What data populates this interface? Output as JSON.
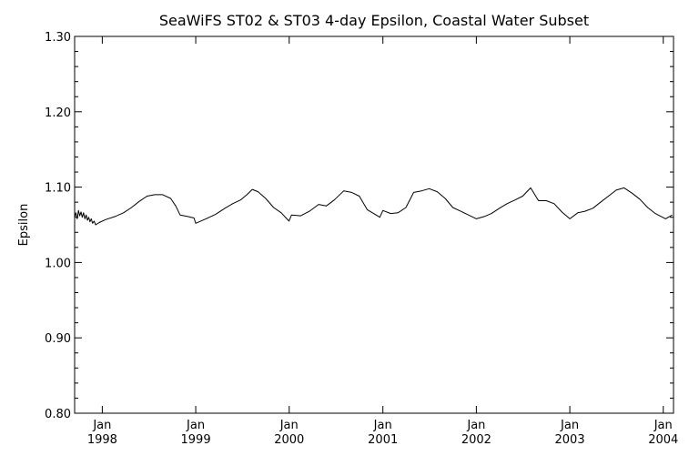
{
  "chart_data": {
    "type": "line",
    "title": "SeaWiFS ST02 & ST03 4-day Epsilon, Coastal Water Subset",
    "xlabel": "",
    "ylabel": "Epsilon",
    "xlim": [
      "1997-09-15",
      "2004-02-10"
    ],
    "ylim": [
      0.8,
      1.3
    ],
    "y_ticks": [
      {
        "value": 0.8,
        "label": "0.80"
      },
      {
        "value": 0.9,
        "label": "0.90"
      },
      {
        "value": 1.0,
        "label": "1.00"
      },
      {
        "value": 1.1,
        "label": "1.10"
      },
      {
        "value": 1.2,
        "label": "1.20"
      },
      {
        "value": 1.3,
        "label": "1.30"
      }
    ],
    "x_ticks": [
      {
        "value": "1998-01-01",
        "month": "Jan",
        "year": "1998"
      },
      {
        "value": "1999-01-01",
        "month": "Jan",
        "year": "1999"
      },
      {
        "value": "2000-01-01",
        "month": "Jan",
        "year": "2000"
      },
      {
        "value": "2001-01-01",
        "month": "Jan",
        "year": "2001"
      },
      {
        "value": "2002-01-01",
        "month": "Jan",
        "year": "2002"
      },
      {
        "value": "2003-01-01",
        "month": "Jan",
        "year": "2003"
      },
      {
        "value": "2004-01-01",
        "month": "Jan",
        "year": "2004"
      }
    ],
    "grid": false,
    "legend": "none",
    "series": [
      {
        "color": "#000000",
        "points": [
          [
            "1997-09-15",
            1.06
          ],
          [
            "1997-09-20",
            1.066
          ],
          [
            "1997-09-25",
            1.058
          ],
          [
            "1997-09-30",
            1.069
          ],
          [
            "1997-10-05",
            1.062
          ],
          [
            "1997-10-10",
            1.067
          ],
          [
            "1997-10-15",
            1.06
          ],
          [
            "1997-10-20",
            1.066
          ],
          [
            "1997-10-25",
            1.058
          ],
          [
            "1997-10-30",
            1.063
          ],
          [
            "1997-11-04",
            1.056
          ],
          [
            "1997-11-09",
            1.06
          ],
          [
            "1997-11-14",
            1.054
          ],
          [
            "1997-11-19",
            1.058
          ],
          [
            "1997-11-24",
            1.052
          ],
          [
            "1997-11-30",
            1.055
          ],
          [
            "1997-12-06",
            1.05
          ],
          [
            "1997-12-20",
            1.053
          ],
          [
            "1998-01-15",
            1.057
          ],
          [
            "1998-02-20",
            1.061
          ],
          [
            "1998-03-25",
            1.066
          ],
          [
            "1998-04-25",
            1.073
          ],
          [
            "1998-05-25",
            1.081
          ],
          [
            "1998-06-25",
            1.088
          ],
          [
            "1998-07-25",
            1.09
          ],
          [
            "1998-08-25",
            1.09
          ],
          [
            "1998-09-25",
            1.085
          ],
          [
            "1998-10-15",
            1.075
          ],
          [
            "1998-11-01",
            1.063
          ],
          [
            "1998-12-01",
            1.061
          ],
          [
            "1998-12-25",
            1.059
          ],
          [
            "1999-01-01",
            1.052
          ],
          [
            "1999-02-10",
            1.058
          ],
          [
            "1999-03-20",
            1.064
          ],
          [
            "1999-04-25",
            1.072
          ],
          [
            "1999-05-25",
            1.078
          ],
          [
            "1999-06-25",
            1.083
          ],
          [
            "1999-07-20",
            1.09
          ],
          [
            "1999-08-10",
            1.097
          ],
          [
            "1999-09-01",
            1.094
          ],
          [
            "1999-10-01",
            1.085
          ],
          [
            "1999-11-01",
            1.073
          ],
          [
            "1999-12-01",
            1.066
          ],
          [
            "1999-12-31",
            1.055
          ],
          [
            "2000-01-10",
            1.063
          ],
          [
            "2000-02-15",
            1.062
          ],
          [
            "2000-03-20",
            1.068
          ],
          [
            "2000-04-25",
            1.077
          ],
          [
            "2000-05-25",
            1.075
          ],
          [
            "2000-06-25",
            1.083
          ],
          [
            "2000-08-01",
            1.095
          ],
          [
            "2000-09-01",
            1.093
          ],
          [
            "2000-10-01",
            1.088
          ],
          [
            "2000-11-01",
            1.07
          ],
          [
            "2000-12-01",
            1.064
          ],
          [
            "2000-12-20",
            1.06
          ],
          [
            "2001-01-01",
            1.069
          ],
          [
            "2001-02-01",
            1.065
          ],
          [
            "2001-03-01",
            1.066
          ],
          [
            "2001-04-01",
            1.073
          ],
          [
            "2001-05-01",
            1.093
          ],
          [
            "2001-06-01",
            1.095
          ],
          [
            "2001-07-01",
            1.098
          ],
          [
            "2001-08-01",
            1.094
          ],
          [
            "2001-09-01",
            1.085
          ],
          [
            "2001-10-01",
            1.073
          ],
          [
            "2001-11-01",
            1.068
          ],
          [
            "2001-12-01",
            1.063
          ],
          [
            "2002-01-01",
            1.058
          ],
          [
            "2002-02-01",
            1.061
          ],
          [
            "2002-03-01",
            1.065
          ],
          [
            "2002-04-01",
            1.072
          ],
          [
            "2002-05-01",
            1.078
          ],
          [
            "2002-06-01",
            1.083
          ],
          [
            "2002-07-01",
            1.088
          ],
          [
            "2002-08-01",
            1.099
          ],
          [
            "2002-09-01",
            1.082
          ],
          [
            "2002-10-01",
            1.082
          ],
          [
            "2002-11-01",
            1.078
          ],
          [
            "2002-12-01",
            1.067
          ],
          [
            "2003-01-01",
            1.058
          ],
          [
            "2003-02-01",
            1.066
          ],
          [
            "2003-03-01",
            1.068
          ],
          [
            "2003-04-01",
            1.072
          ],
          [
            "2003-05-01",
            1.08
          ],
          [
            "2003-06-01",
            1.088
          ],
          [
            "2003-07-01",
            1.096
          ],
          [
            "2003-08-01",
            1.099
          ],
          [
            "2003-09-01",
            1.092
          ],
          [
            "2003-10-01",
            1.084
          ],
          [
            "2003-11-01",
            1.073
          ],
          [
            "2003-12-01",
            1.065
          ],
          [
            "2004-01-10",
            1.058
          ],
          [
            "2004-02-05",
            1.063
          ]
        ]
      }
    ]
  }
}
